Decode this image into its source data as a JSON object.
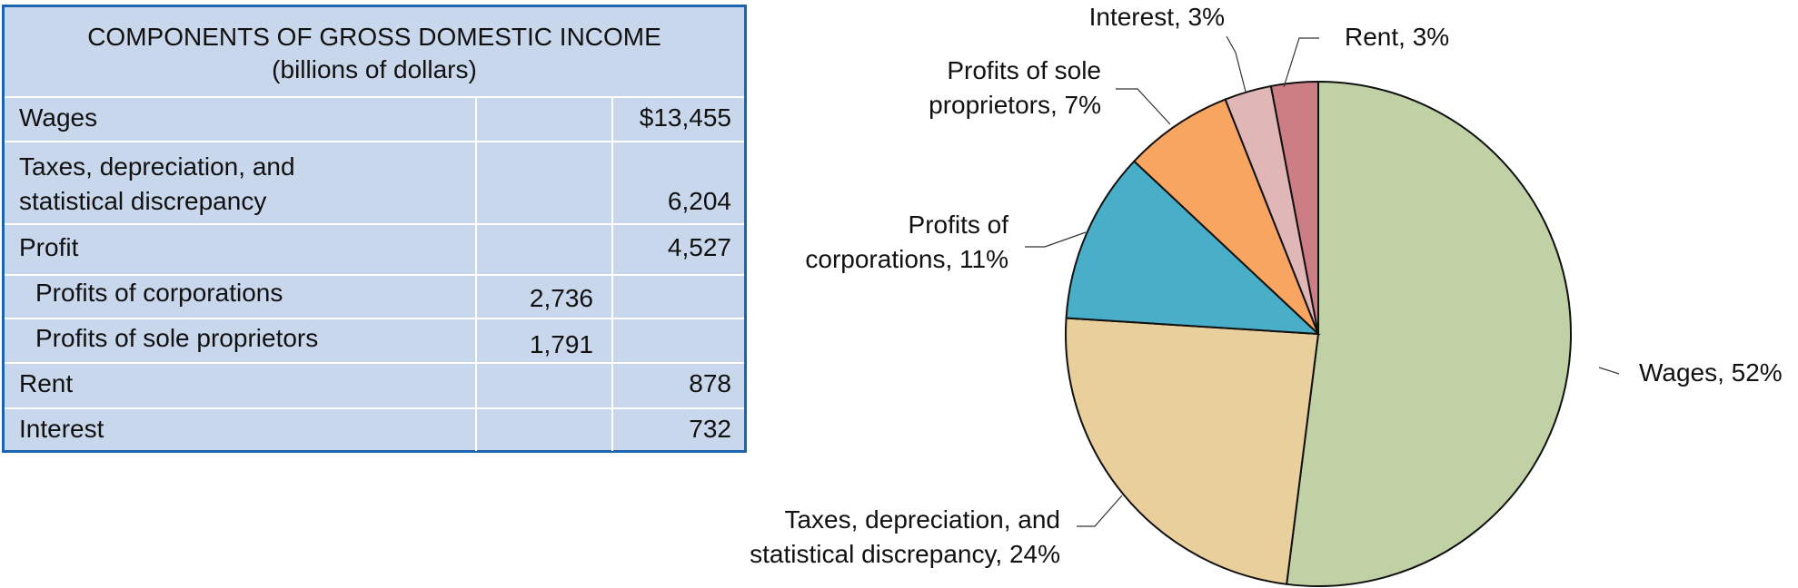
{
  "table": {
    "title": "COMPONENTS OF GROSS DOMESTIC INCOME",
    "subtitle": "(billions of dollars)",
    "rows": [
      {
        "label_lines": [
          "Wages"
        ],
        "sub": "",
        "total": "$13,455"
      },
      {
        "label_lines": [
          "Taxes, depreciation, and",
          "statistical discrepancy"
        ],
        "sub": "",
        "total": "6,204"
      },
      {
        "label_lines": [
          "Profit"
        ],
        "sub": "",
        "total": "4,527"
      },
      {
        "label_lines": [
          "Profits of corporations"
        ],
        "sub": "2,736",
        "total": ""
      },
      {
        "label_lines": [
          "Profits of sole proprietors"
        ],
        "sub": "1,791",
        "total": ""
      },
      {
        "label_lines": [
          "Rent"
        ],
        "sub": "",
        "total": "878"
      },
      {
        "label_lines": [
          "Interest"
        ],
        "sub": "",
        "total": "732"
      }
    ]
  },
  "chart_data": {
    "type": "pie",
    "title": "",
    "start_angle_deg": 0,
    "direction": "clockwise",
    "slices": [
      {
        "name": "Wages",
        "percent": 52,
        "label_lines": [
          "Wages, 52%"
        ],
        "color": "#c0d1a5"
      },
      {
        "name": "Taxes, depreciation, and statistical discrepancy",
        "percent": 24,
        "label_lines": [
          "Taxes, depreciation, and",
          "statistical discrepancy, 24%"
        ],
        "color": "#e8cf9b"
      },
      {
        "name": "Profits of corporations",
        "percent": 11,
        "label_lines": [
          "Profits of",
          "corporations, 11%"
        ],
        "color": "#49aec8"
      },
      {
        "name": "Profits of sole proprietors",
        "percent": 7,
        "label_lines": [
          "Profits of sole",
          "proprietors, 7%"
        ],
        "color": "#f7a561"
      },
      {
        "name": "Interest",
        "percent": 3,
        "label_lines": [
          "Interest, 3%"
        ],
        "color": "#e0b6b7"
      },
      {
        "name": "Rent",
        "percent": 3,
        "label_lines": [
          "Rent, 3%"
        ],
        "color": "#cc7e84"
      }
    ]
  }
}
